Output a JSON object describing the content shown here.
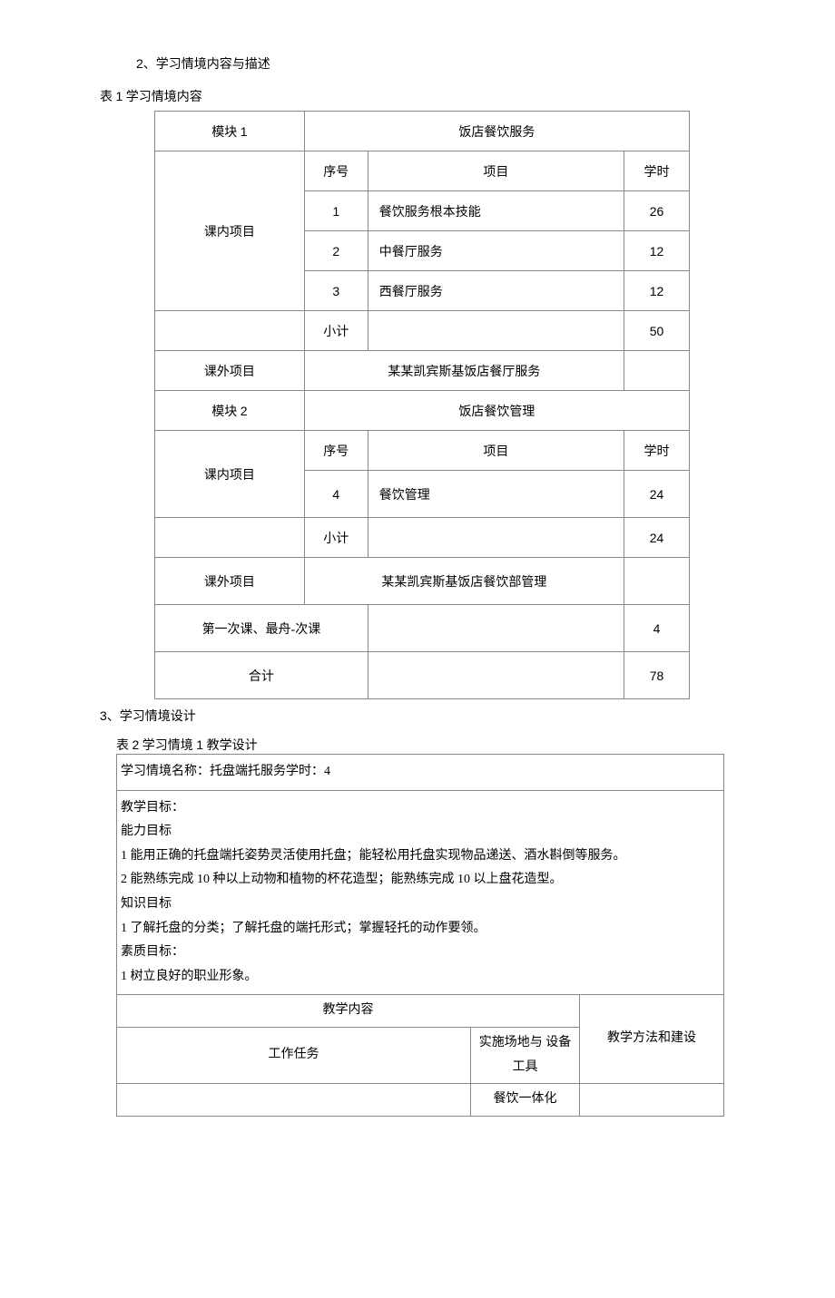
{
  "heading2": {
    "num": "2",
    "sep": "、",
    "title": "学习情境内容与描述"
  },
  "caption1": {
    "prefix": "表",
    "num": "1",
    "title": "学习情境内容"
  },
  "table1": {
    "module_label": "模块",
    "module1_num": "1",
    "module1_title": "饭店餐饮服务",
    "inclass": "课内项目",
    "seq_hdr": "序号",
    "item_hdr": "项目",
    "hours_hdr": "学时",
    "r1": {
      "seq": "1",
      "name": "餐饮服务根本技能",
      "hr": "26"
    },
    "r2": {
      "seq": "2",
      "name": "中餐厅服务",
      "hr": "12"
    },
    "r3": {
      "seq": "3",
      "name": "西餐厅服务",
      "hr": "12"
    },
    "subtotal": "小计",
    "sub1_hr": "50",
    "outclass": "课外项目",
    "out1_name": "某某凯宾斯基饭店餐厅服务",
    "module2_num": "2",
    "module2_title": "饭店餐饮管理",
    "r4": {
      "seq": "4",
      "name": "餐饮管理",
      "hr": "24"
    },
    "sub2_hr": "24",
    "out2_name": "某某凯宾斯基饭店餐饮部管理",
    "firstlast": "第一次课、最舟-次课",
    "firstlast_hr": "4",
    "total": "合计",
    "total_hr": "78"
  },
  "heading3": {
    "num": "3",
    "sep": "、",
    "title": "学习情境设计"
  },
  "caption2": {
    "prefix": "表",
    "num": "2",
    "title": "学习情境",
    "design_num": "1",
    "suffix": "教学设计"
  },
  "table2": {
    "name_row": "学习情境名称：托盘端托服务学时：4",
    "goal_title": "教学目标：",
    "ability_title": "能力目标",
    "ability1": "1 能用正确的托盘端托姿势灵活使用托盘；能轻松用托盘实现物品递送、酒水斟倒等服务。",
    "ability2": "2 能熟练完成 10 种以上动物和植物的杯花造型；能熟练完成 10 以上盘花造型。",
    "knowledge_title": "知识目标",
    "knowledge1": "1 了解托盘的分类；了解托盘的端托形式；掌握轻托的动作要领。",
    "quality_title": "素质目标：",
    "quality1": "1 树立良好的职业形象。",
    "content_hdr": "教学内容",
    "method_hdr": "教学方法和建设",
    "task_hdr": "工作任务",
    "tool_hdr": "实施场地与 设备工具",
    "tool_val": "餐饮一体化"
  }
}
